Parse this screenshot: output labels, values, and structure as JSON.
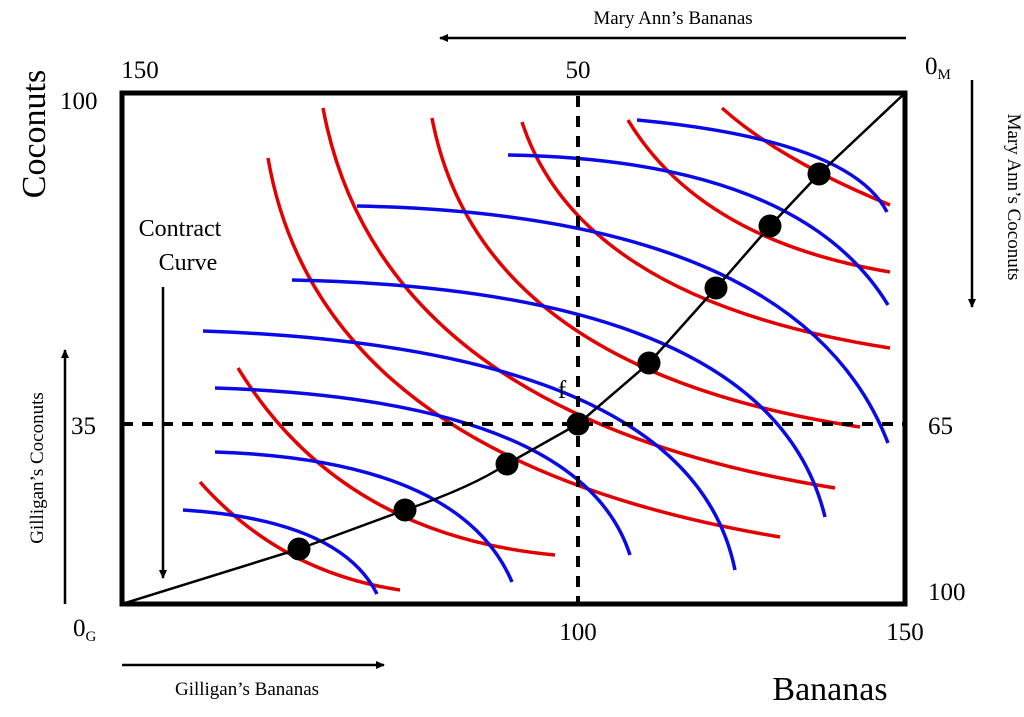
{
  "axes": {
    "y_title": "Coconuts",
    "x_title": "Bananas",
    "top_label": "Mary Ann’s Bananas",
    "right_label": "Mary Ann’s Coconuts",
    "left_label": "Gilligan’s Coconuts",
    "bottom_label": "Gilligan’s Bananas"
  },
  "origins": {
    "gilligan_main": "0",
    "gilligan_sub": "G",
    "maryann_main": "0",
    "maryann_sub": "M"
  },
  "ticks": {
    "left_100": "100",
    "left_35": "35",
    "bottom_100": "100",
    "bottom_150": "150",
    "top_150": "150",
    "top_50": "50",
    "right_65": "65",
    "right_100": "100"
  },
  "annotations": {
    "contract_line1": "Contract",
    "contract_line2": "Curve",
    "point_f": "f"
  },
  "edgeworth_box": {
    "banana_total": 150,
    "coconut_total": 100,
    "endowment_f": {
      "gilligan_bananas": 100,
      "gilligan_coconuts": 35,
      "maryann_bananas": 50,
      "maryann_coconuts": 65
    }
  },
  "colors": {
    "gilligan_curves": "#e30000",
    "maryann_curves": "#0a0ae6",
    "frame": "#000000"
  }
}
